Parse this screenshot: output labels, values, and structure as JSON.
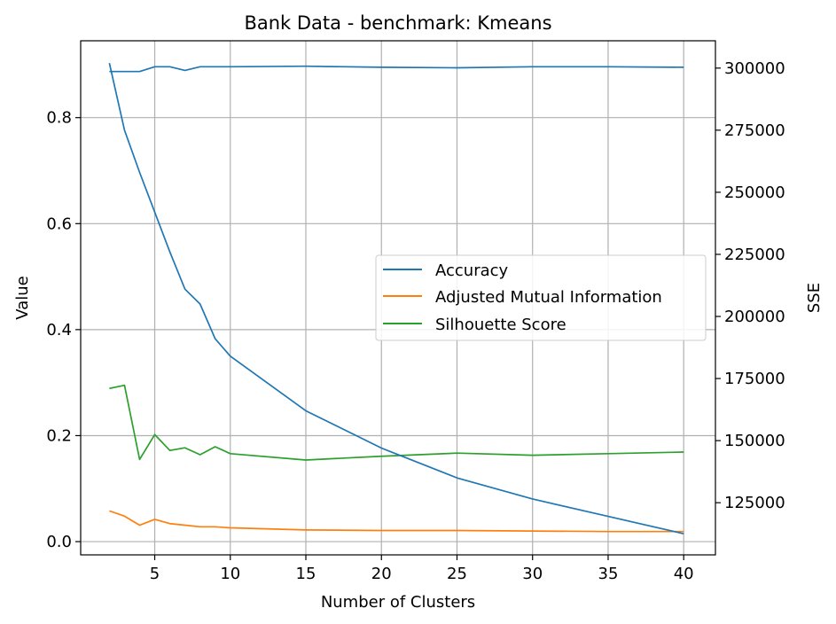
{
  "chart_data": {
    "type": "line",
    "title": "Bank Data - benchmark: Kmeans",
    "xlabel": "Number of Clusters",
    "ylabel": "Value",
    "y2label": "SSE",
    "xlim": [
      0.1,
      42.1
    ],
    "ylim": [
      -0.025,
      0.945
    ],
    "y2lim": [
      104000,
      311000
    ],
    "xticks": [
      5,
      10,
      15,
      20,
      25,
      30,
      35,
      40
    ],
    "yticks": [
      0.0,
      0.2,
      0.4,
      0.6,
      0.8
    ],
    "y2ticks": [
      125000,
      150000,
      175000,
      200000,
      225000,
      250000,
      275000,
      300000
    ],
    "grid": true,
    "legend_position": "center-right",
    "series": [
      {
        "name": "Accuracy",
        "axis": "left",
        "color": "#1f77b4",
        "x": [
          2,
          3,
          4,
          5,
          6,
          7,
          8,
          9,
          10,
          15,
          20,
          25,
          30,
          35,
          40
        ],
        "y": [
          0.887,
          0.887,
          0.887,
          0.896,
          0.896,
          0.889,
          0.896,
          0.896,
          0.896,
          0.897,
          0.895,
          0.894,
          0.896,
          0.896,
          0.895
        ]
      },
      {
        "name": "Adjusted Mutual Information",
        "axis": "left",
        "color": "#ff7f0e",
        "x": [
          2,
          3,
          4,
          5,
          6,
          7,
          8,
          9,
          10,
          15,
          20,
          25,
          30,
          35,
          40
        ],
        "y": [
          0.058,
          0.048,
          0.031,
          0.042,
          0.034,
          0.031,
          0.028,
          0.028,
          0.026,
          0.022,
          0.021,
          0.021,
          0.02,
          0.019,
          0.019
        ]
      },
      {
        "name": "Silhouette Score",
        "axis": "left",
        "color": "#2ca02c",
        "x": [
          2,
          3,
          4,
          5,
          6,
          7,
          8,
          9,
          10,
          15,
          20,
          25,
          30,
          35,
          40
        ],
        "y": [
          0.289,
          0.295,
          0.155,
          0.202,
          0.172,
          0.177,
          0.164,
          0.179,
          0.166,
          0.154,
          0.161,
          0.167,
          0.163,
          0.166,
          0.169
        ]
      },
      {
        "axis": "right",
        "color": "#1f77b4",
        "x": [
          2,
          3,
          4,
          5,
          6,
          7,
          8,
          9,
          10,
          15,
          20,
          25,
          30,
          35,
          40
        ],
        "y": [
          302000,
          275000,
          258000,
          242000,
          226000,
          211000,
          205000,
          191000,
          184000,
          162000,
          147000,
          135000,
          126500,
          119500,
          112500
        ]
      }
    ]
  }
}
